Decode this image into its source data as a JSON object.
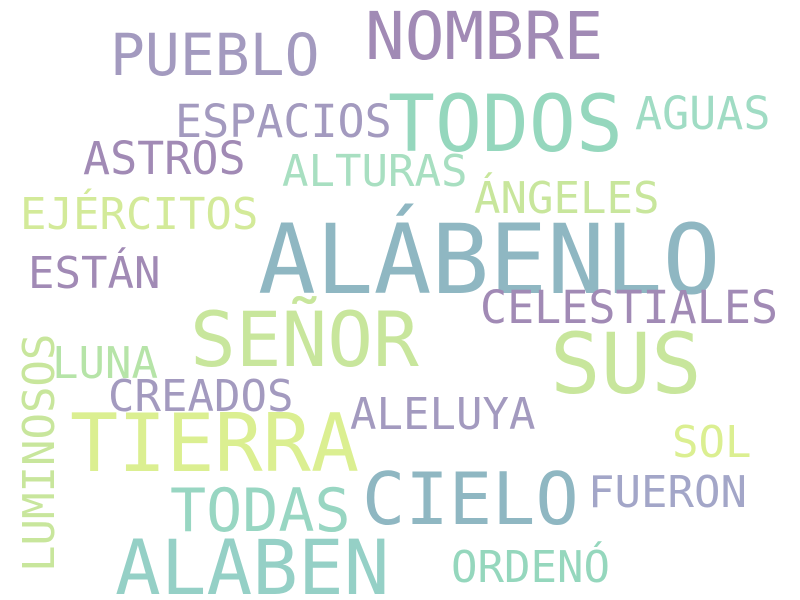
{
  "words": [
    {
      "text": "ALÁBENLO",
      "color": "#8fb7c2"
    },
    {
      "text": "SUS",
      "color": "#c8e69c"
    },
    {
      "text": "NOMBRE",
      "color": "#a18ab5"
    },
    {
      "text": "TODOS",
      "color": "#95d7bd"
    },
    {
      "text": "SEÑOR",
      "color": "#c8e69c"
    },
    {
      "text": "TIERRA",
      "color": "#dbef91"
    },
    {
      "text": "ALABEN",
      "color": "#95d0c6"
    },
    {
      "text": "CIELO",
      "color": "#8fb7c2"
    },
    {
      "text": "PUEBLO",
      "color": "#a39abf"
    },
    {
      "text": "TODAS",
      "color": "#98d6c2"
    },
    {
      "text": "ESPACIOS",
      "color": "#a39abf"
    },
    {
      "text": "AGUAS",
      "color": "#a0dcc4"
    },
    {
      "text": "ASTROS",
      "color": "#a18ab5"
    },
    {
      "text": "ALTURAS",
      "color": "#a8dfc1"
    },
    {
      "text": "ÁNGELES",
      "color": "#c8e69c"
    },
    {
      "text": "EJÉRCITOS",
      "color": "#d3ea99"
    },
    {
      "text": "ESTÁN",
      "color": "#a18ab5"
    },
    {
      "text": "CELESTIALES",
      "color": "#a18ab5"
    },
    {
      "text": "LUNA",
      "color": "#b6e4a8"
    },
    {
      "text": "CREADOS",
      "color": "#a39abf"
    },
    {
      "text": "ALELUYA",
      "color": "#a39abf"
    },
    {
      "text": "SOL",
      "color": "#dbef91"
    },
    {
      "text": "FUERON",
      "color": "#a3a6c8"
    },
    {
      "text": "ORDENÓ",
      "color": "#95d7bd"
    },
    {
      "text": "LUMINOSOS",
      "color": "#c8e69c"
    }
  ]
}
